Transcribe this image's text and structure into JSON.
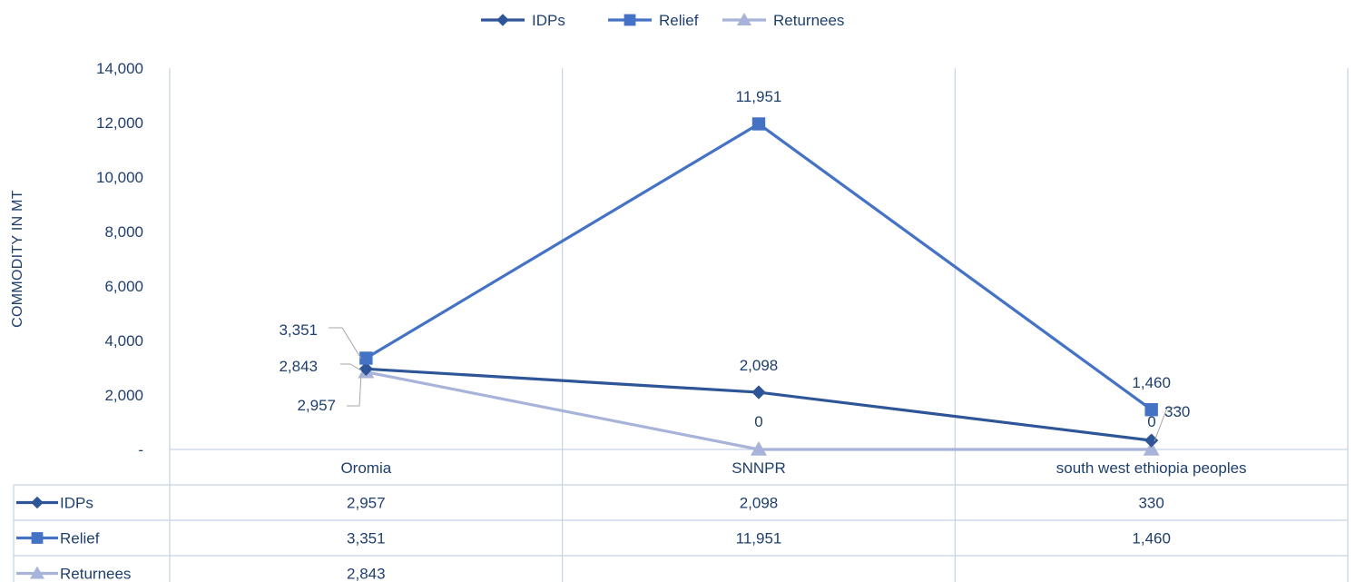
{
  "chart_data": {
    "type": "line",
    "title": "",
    "xlabel": "",
    "ylabel": "COMMODITY IN MT",
    "categories": [
      "Oromia",
      "SNNPR",
      "south west ethiopia peoples"
    ],
    "ylim": [
      0,
      14000
    ],
    "y_ticks": [
      0,
      2000,
      4000,
      6000,
      8000,
      10000,
      12000,
      14000
    ],
    "y_tick_labels": [
      "-",
      "2,000",
      "4,000",
      "6,000",
      "8,000",
      "10,000",
      "12,000",
      "14,000"
    ],
    "grid": "vertical category separators",
    "legend_position": "top",
    "data_table": true,
    "series": [
      {
        "name": "IDPs",
        "marker": "diamond",
        "color": "#2e5597",
        "values": [
          2957,
          2098,
          330
        ],
        "labels": [
          "2,957",
          "2,098",
          "330"
        ],
        "table_values": [
          "2,957",
          "2,098",
          "330"
        ]
      },
      {
        "name": "Relief",
        "marker": "square",
        "color": "#4472c4",
        "values": [
          3351,
          11951,
          1460
        ],
        "labels": [
          "3,351",
          "11,951",
          "1,460"
        ],
        "table_values": [
          "3,351",
          "11,951",
          "1,460"
        ]
      },
      {
        "name": "Returnees",
        "marker": "triangle",
        "color": "#a8b3da",
        "values": [
          2843,
          0,
          0
        ],
        "labels": [
          "2,843",
          "0",
          "0"
        ],
        "table_values": [
          "2,843",
          "",
          ""
        ]
      }
    ]
  }
}
